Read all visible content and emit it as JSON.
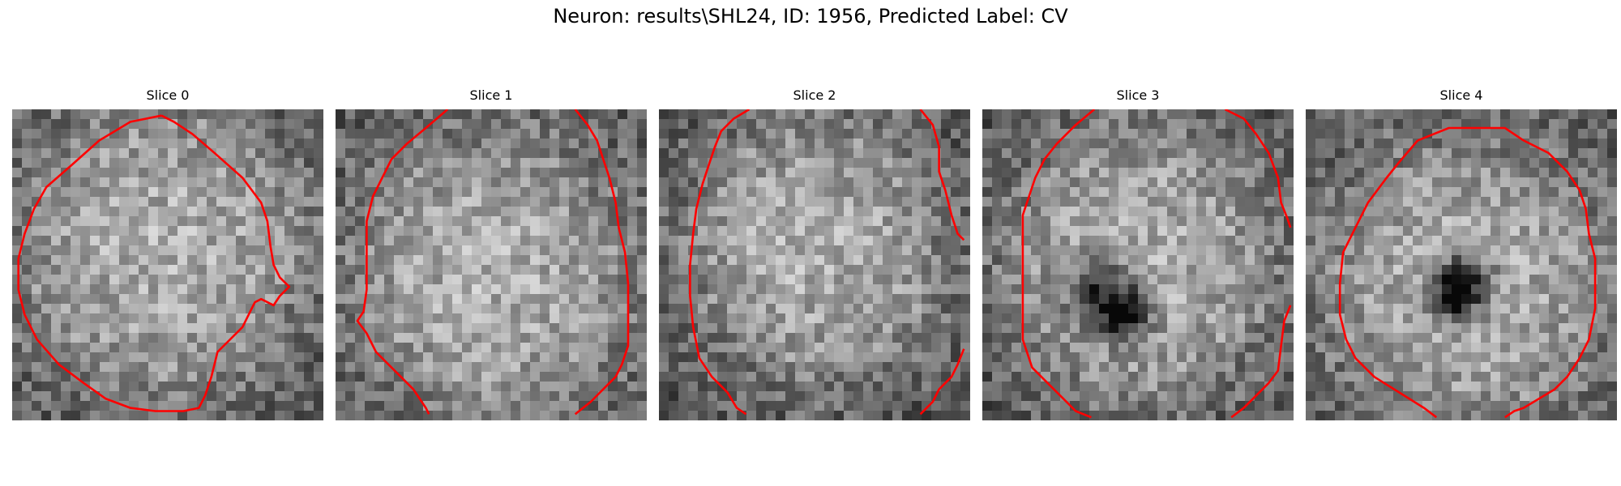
{
  "figure": {
    "title": "Neuron: results\\SHL24, ID: 1956, Predicted Label: CV",
    "contour_color": "#ff0000",
    "colormap": "gray",
    "grid_size": 32
  },
  "slices": [
    {
      "label": "Slice 0",
      "bright_center": [
        0.48,
        0.45
      ],
      "bright_radius": 0.43,
      "dark_spots": [],
      "contour": [
        [
          0.48,
          0.02
        ],
        [
          0.38,
          0.04
        ],
        [
          0.28,
          0.1
        ],
        [
          0.19,
          0.18
        ],
        [
          0.11,
          0.25
        ],
        [
          0.07,
          0.32
        ],
        [
          0.04,
          0.4
        ],
        [
          0.02,
          0.48
        ],
        [
          0.02,
          0.58
        ],
        [
          0.04,
          0.66
        ],
        [
          0.08,
          0.74
        ],
        [
          0.15,
          0.82
        ],
        [
          0.23,
          0.88
        ],
        [
          0.3,
          0.93
        ],
        [
          0.38,
          0.96
        ],
        [
          0.46,
          0.97
        ],
        [
          0.55,
          0.97
        ],
        [
          0.6,
          0.96
        ],
        [
          0.62,
          0.92
        ],
        [
          0.64,
          0.86
        ],
        [
          0.66,
          0.78
        ],
        [
          0.7,
          0.74
        ],
        [
          0.74,
          0.7
        ],
        [
          0.76,
          0.66
        ],
        [
          0.78,
          0.62
        ],
        [
          0.8,
          0.61
        ],
        [
          0.84,
          0.63
        ],
        [
          0.86,
          0.6
        ],
        [
          0.89,
          0.57
        ],
        [
          0.86,
          0.54
        ],
        [
          0.84,
          0.5
        ],
        [
          0.83,
          0.44
        ],
        [
          0.82,
          0.36
        ],
        [
          0.8,
          0.3
        ],
        [
          0.74,
          0.22
        ],
        [
          0.65,
          0.14
        ],
        [
          0.58,
          0.08
        ],
        [
          0.52,
          0.04
        ],
        [
          0.48,
          0.02
        ]
      ]
    },
    {
      "label": "Slice 1",
      "bright_center": [
        0.5,
        0.53
      ],
      "bright_radius": 0.42,
      "dark_spots": [],
      "lines": [
        [
          [
            0.36,
            0.0
          ],
          [
            0.29,
            0.06
          ],
          [
            0.23,
            0.11
          ],
          [
            0.18,
            0.16
          ],
          [
            0.16,
            0.2
          ],
          [
            0.12,
            0.28
          ],
          [
            0.1,
            0.36
          ],
          [
            0.1,
            0.48
          ],
          [
            0.1,
            0.58
          ],
          [
            0.09,
            0.65
          ],
          [
            0.07,
            0.68
          ],
          [
            0.1,
            0.72
          ],
          [
            0.13,
            0.78
          ],
          [
            0.17,
            0.82
          ],
          [
            0.21,
            0.86
          ],
          [
            0.25,
            0.9
          ],
          [
            0.29,
            0.96
          ],
          [
            0.3,
            0.98
          ]
        ],
        [
          [
            0.77,
            0.0
          ],
          [
            0.81,
            0.05
          ],
          [
            0.84,
            0.1
          ],
          [
            0.86,
            0.16
          ],
          [
            0.88,
            0.22
          ],
          [
            0.9,
            0.3
          ],
          [
            0.91,
            0.38
          ],
          [
            0.93,
            0.46
          ],
          [
            0.94,
            0.56
          ],
          [
            0.94,
            0.64
          ],
          [
            0.94,
            0.7
          ],
          [
            0.94,
            0.76
          ],
          [
            0.92,
            0.82
          ],
          [
            0.9,
            0.86
          ],
          [
            0.86,
            0.9
          ],
          [
            0.82,
            0.94
          ],
          [
            0.77,
            0.98
          ]
        ]
      ]
    },
    {
      "label": "Slice 2",
      "bright_center": [
        0.5,
        0.45
      ],
      "bright_radius": 0.38,
      "dark_spots": [],
      "lines": [
        [
          [
            0.29,
            0.0
          ],
          [
            0.24,
            0.03
          ],
          [
            0.2,
            0.07
          ],
          [
            0.18,
            0.12
          ],
          [
            0.16,
            0.18
          ],
          [
            0.14,
            0.24
          ],
          [
            0.12,
            0.32
          ],
          [
            0.11,
            0.4
          ],
          [
            0.1,
            0.5
          ],
          [
            0.1,
            0.6
          ],
          [
            0.11,
            0.7
          ],
          [
            0.13,
            0.8
          ],
          [
            0.17,
            0.86
          ],
          [
            0.22,
            0.91
          ],
          [
            0.25,
            0.96
          ],
          [
            0.28,
            0.98
          ]
        ],
        [
          [
            0.84,
            0.0
          ],
          [
            0.88,
            0.05
          ],
          [
            0.9,
            0.12
          ],
          [
            0.9,
            0.2
          ],
          [
            0.92,
            0.26
          ],
          [
            0.94,
            0.34
          ],
          [
            0.96,
            0.4
          ],
          [
            0.98,
            0.42
          ]
        ],
        [
          [
            0.98,
            0.77
          ],
          [
            0.96,
            0.82
          ],
          [
            0.94,
            0.86
          ],
          [
            0.9,
            0.9
          ],
          [
            0.88,
            0.94
          ],
          [
            0.84,
            0.98
          ]
        ]
      ]
    },
    {
      "label": "Slice 3",
      "bright_center": [
        0.5,
        0.5
      ],
      "bright_radius": 0.4,
      "dark_spots": [
        [
          0.38,
          0.6,
          0.13
        ],
        [
          0.46,
          0.66,
          0.1
        ]
      ],
      "lines": [
        [
          [
            0.36,
            0.0
          ],
          [
            0.3,
            0.05
          ],
          [
            0.24,
            0.11
          ],
          [
            0.2,
            0.16
          ],
          [
            0.17,
            0.22
          ],
          [
            0.15,
            0.28
          ],
          [
            0.13,
            0.34
          ],
          [
            0.13,
            0.42
          ],
          [
            0.13,
            0.52
          ],
          [
            0.13,
            0.64
          ],
          [
            0.13,
            0.74
          ],
          [
            0.16,
            0.83
          ],
          [
            0.21,
            0.88
          ],
          [
            0.26,
            0.93
          ],
          [
            0.3,
            0.97
          ],
          [
            0.35,
            0.99
          ]
        ],
        [
          [
            0.78,
            0.0
          ],
          [
            0.84,
            0.03
          ],
          [
            0.88,
            0.08
          ],
          [
            0.92,
            0.14
          ],
          [
            0.95,
            0.22
          ],
          [
            0.96,
            0.3
          ],
          [
            0.98,
            0.35
          ],
          [
            0.99,
            0.38
          ]
        ],
        [
          [
            0.99,
            0.63
          ],
          [
            0.97,
            0.68
          ],
          [
            0.96,
            0.76
          ],
          [
            0.95,
            0.84
          ],
          [
            0.92,
            0.88
          ],
          [
            0.88,
            0.92
          ],
          [
            0.84,
            0.96
          ],
          [
            0.8,
            0.99
          ]
        ]
      ]
    },
    {
      "label": "Slice 4",
      "bright_center": [
        0.52,
        0.56
      ],
      "bright_radius": 0.42,
      "dark_spots": [
        [
          0.5,
          0.56,
          0.12
        ],
        [
          0.48,
          0.6,
          0.08
        ]
      ],
      "contour": [
        [
          0.36,
          0.1
        ],
        [
          0.46,
          0.06
        ],
        [
          0.56,
          0.06
        ],
        [
          0.64,
          0.06
        ],
        [
          0.7,
          0.1
        ],
        [
          0.78,
          0.14
        ],
        [
          0.84,
          0.2
        ],
        [
          0.88,
          0.26
        ],
        [
          0.9,
          0.32
        ],
        [
          0.91,
          0.4
        ],
        [
          0.93,
          0.48
        ],
        [
          0.93,
          0.56
        ],
        [
          0.93,
          0.64
        ],
        [
          0.91,
          0.74
        ],
        [
          0.88,
          0.8
        ],
        [
          0.84,
          0.86
        ],
        [
          0.8,
          0.9
        ],
        [
          0.75,
          0.93
        ],
        [
          0.7,
          0.96
        ],
        [
          0.67,
          0.97
        ],
        [
          0.64,
          0.99
        ]
      ],
      "contour_b": [
        [
          0.42,
          0.99
        ],
        [
          0.38,
          0.96
        ],
        [
          0.3,
          0.91
        ],
        [
          0.22,
          0.86
        ],
        [
          0.16,
          0.8
        ],
        [
          0.13,
          0.74
        ],
        [
          0.11,
          0.66
        ],
        [
          0.11,
          0.56
        ],
        [
          0.12,
          0.46
        ],
        [
          0.16,
          0.38
        ],
        [
          0.2,
          0.3
        ],
        [
          0.26,
          0.22
        ],
        [
          0.3,
          0.17
        ],
        [
          0.36,
          0.1
        ]
      ]
    }
  ]
}
